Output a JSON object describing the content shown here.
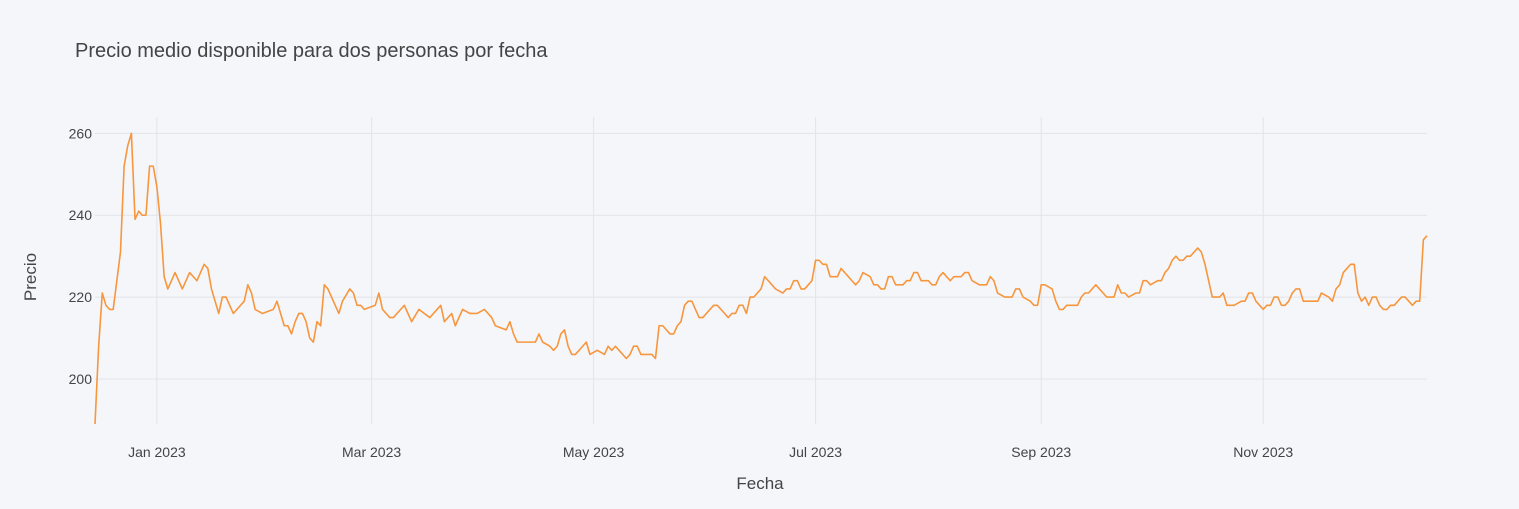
{
  "chart_data": {
    "type": "line",
    "title": "Precio medio disponible para dos personas por fecha",
    "x_label": "Fecha",
    "y_label": "Precio",
    "color": "#f7963c",
    "grid": true,
    "xlim": [
      "2022-12-15",
      "2023-12-16"
    ],
    "xticks": [
      {
        "value": "2023-01-01",
        "label": "Jan 2023"
      },
      {
        "value": "2023-03-01",
        "label": "Mar 2023"
      },
      {
        "value": "2023-05-01",
        "label": "May 2023"
      },
      {
        "value": "2023-07-01",
        "label": "Jul 2023"
      },
      {
        "value": "2023-09-01",
        "label": "Sep 2023"
      },
      {
        "value": "2023-11-01",
        "label": "Nov 2023"
      }
    ],
    "ylim": [
      189,
      264
    ],
    "yticks": [
      200,
      220,
      240,
      260
    ],
    "x": [
      "2022-12-15",
      "2022-12-16",
      "2022-12-17",
      "2022-12-18",
      "2022-12-19",
      "2022-12-20",
      "2022-12-22",
      "2022-12-23",
      "2022-12-24",
      "2022-12-25",
      "2022-12-26",
      "2022-12-27",
      "2022-12-28",
      "2022-12-29",
      "2022-12-30",
      "2022-12-31",
      "2023-01-01",
      "2023-01-02",
      "2023-01-03",
      "2023-01-04",
      "2023-01-06",
      "2023-01-08",
      "2023-01-10",
      "2023-01-12",
      "2023-01-14",
      "2023-01-15",
      "2023-01-16",
      "2023-01-17",
      "2023-01-18",
      "2023-01-19",
      "2023-01-20",
      "2023-01-22",
      "2023-01-25",
      "2023-01-26",
      "2023-01-27",
      "2023-01-28",
      "2023-01-30",
      "2023-02-02",
      "2023-02-03",
      "2023-02-04",
      "2023-02-05",
      "2023-02-06",
      "2023-02-07",
      "2023-02-08",
      "2023-02-09",
      "2023-02-10",
      "2023-02-11",
      "2023-02-12",
      "2023-02-13",
      "2023-02-14",
      "2023-02-15",
      "2023-02-16",
      "2023-02-17",
      "2023-02-19",
      "2023-02-20",
      "2023-02-21",
      "2023-02-23",
      "2023-02-24",
      "2023-02-25",
      "2023-02-26",
      "2023-02-27",
      "2023-03-02",
      "2023-03-03",
      "2023-03-04",
      "2023-03-06",
      "2023-03-07",
      "2023-03-09",
      "2023-03-10",
      "2023-03-12",
      "2023-03-14",
      "2023-03-17",
      "2023-03-20",
      "2023-03-21",
      "2023-03-23",
      "2023-03-24",
      "2023-03-26",
      "2023-03-28",
      "2023-03-30",
      "2023-04-01",
      "2023-04-03",
      "2023-04-04",
      "2023-04-07",
      "2023-04-08",
      "2023-04-09",
      "2023-04-10",
      "2023-04-14",
      "2023-04-15",
      "2023-04-16",
      "2023-04-17",
      "2023-04-19",
      "2023-04-20",
      "2023-04-21",
      "2023-04-22",
      "2023-04-23",
      "2023-04-24",
      "2023-04-25",
      "2023-04-26",
      "2023-04-28",
      "2023-04-29",
      "2023-04-30",
      "2023-05-02",
      "2023-05-04",
      "2023-05-05",
      "2023-05-06",
      "2023-05-07",
      "2023-05-08",
      "2023-05-10",
      "2023-05-11",
      "2023-05-12",
      "2023-05-13",
      "2023-05-14",
      "2023-05-17",
      "2023-05-18",
      "2023-05-19",
      "2023-05-20",
      "2023-05-22",
      "2023-05-23",
      "2023-05-24",
      "2023-05-25",
      "2023-05-26",
      "2023-05-27",
      "2023-05-28",
      "2023-05-29",
      "2023-05-30",
      "2023-05-31",
      "2023-06-02",
      "2023-06-03",
      "2023-06-04",
      "2023-06-05",
      "2023-06-06",
      "2023-06-07",
      "2023-06-08",
      "2023-06-09",
      "2023-06-10",
      "2023-06-11",
      "2023-06-12",
      "2023-06-13",
      "2023-06-14",
      "2023-06-15",
      "2023-06-16",
      "2023-06-17",
      "2023-06-18",
      "2023-06-20",
      "2023-06-22",
      "2023-06-23",
      "2023-06-24",
      "2023-06-25",
      "2023-06-26",
      "2023-06-27",
      "2023-06-28",
      "2023-06-29",
      "2023-06-30",
      "2023-07-01",
      "2023-07-02",
      "2023-07-03",
      "2023-07-04",
      "2023-07-05",
      "2023-07-07",
      "2023-07-08",
      "2023-07-10",
      "2023-07-11",
      "2023-07-12",
      "2023-07-13",
      "2023-07-14",
      "2023-07-16",
      "2023-07-17",
      "2023-07-18",
      "2023-07-19",
      "2023-07-20",
      "2023-07-21",
      "2023-07-22",
      "2023-07-23",
      "2023-07-25",
      "2023-07-26",
      "2023-07-27",
      "2023-07-28",
      "2023-07-29",
      "2023-07-30",
      "2023-08-01",
      "2023-08-02",
      "2023-08-03",
      "2023-08-04",
      "2023-08-05",
      "2023-08-07",
      "2023-08-08",
      "2023-08-10",
      "2023-08-11",
      "2023-08-12",
      "2023-08-13",
      "2023-08-15",
      "2023-08-17",
      "2023-08-18",
      "2023-08-19",
      "2023-08-20",
      "2023-08-22",
      "2023-08-24",
      "2023-08-25",
      "2023-08-26",
      "2023-08-27",
      "2023-08-29",
      "2023-08-30",
      "2023-08-31",
      "2023-09-01",
      "2023-09-02",
      "2023-09-04",
      "2023-09-05",
      "2023-09-06",
      "2023-09-07",
      "2023-09-08",
      "2023-09-10",
      "2023-09-11",
      "2023-09-12",
      "2023-09-13",
      "2023-09-14",
      "2023-09-16",
      "2023-09-17",
      "2023-09-18",
      "2023-09-19",
      "2023-09-21",
      "2023-09-22",
      "2023-09-23",
      "2023-09-24",
      "2023-09-25",
      "2023-09-27",
      "2023-09-28",
      "2023-09-29",
      "2023-09-30",
      "2023-10-01",
      "2023-10-03",
      "2023-10-04",
      "2023-10-05",
      "2023-10-06",
      "2023-10-07",
      "2023-10-08",
      "2023-10-09",
      "2023-10-10",
      "2023-10-11",
      "2023-10-12",
      "2023-10-14",
      "2023-10-15",
      "2023-10-16",
      "2023-10-17",
      "2023-10-18",
      "2023-10-20",
      "2023-10-21",
      "2023-10-22",
      "2023-10-24",
      "2023-10-26",
      "2023-10-27",
      "2023-10-28",
      "2023-10-29",
      "2023-10-30",
      "2023-10-31",
      "2023-11-01",
      "2023-11-02",
      "2023-11-03",
      "2023-11-04",
      "2023-11-05",
      "2023-11-06",
      "2023-11-07",
      "2023-11-08",
      "2023-11-09",
      "2023-11-10",
      "2023-11-11",
      "2023-11-12",
      "2023-11-15",
      "2023-11-16",
      "2023-11-17",
      "2023-11-19",
      "2023-11-20",
      "2023-11-21",
      "2023-11-22",
      "2023-11-23",
      "2023-11-24",
      "2023-11-25",
      "2023-11-26",
      "2023-11-27",
      "2023-11-28",
      "2023-11-29",
      "2023-11-30",
      "2023-12-01",
      "2023-12-02",
      "2023-12-03",
      "2023-12-04",
      "2023-12-05",
      "2023-12-06",
      "2023-12-07",
      "2023-12-08",
      "2023-12-09",
      "2023-12-10",
      "2023-12-11",
      "2023-12-12",
      "2023-12-13",
      "2023-12-14",
      "2023-12-15",
      "2023-12-16"
    ],
    "values": [
      189,
      208,
      221,
      218,
      217,
      217,
      231,
      252,
      257,
      260,
      239,
      241,
      240,
      240,
      252,
      252,
      247,
      238,
      225,
      222,
      226,
      222,
      226,
      224,
      228,
      227,
      222,
      219,
      216,
      220,
      220,
      216,
      219,
      223,
      221,
      217,
      216,
      217,
      219,
      216,
      213,
      213,
      211,
      214,
      216,
      216,
      214,
      210,
      209,
      214,
      213,
      223,
      222,
      218,
      216,
      219,
      222,
      221,
      218,
      218,
      217,
      218,
      221,
      217,
      215,
      215,
      217,
      218,
      214,
      217,
      215,
      218,
      214,
      216,
      213,
      217,
      216,
      216,
      217,
      215,
      213,
      212,
      214,
      211,
      209,
      209,
      209,
      211,
      209,
      208,
      207,
      208,
      211,
      212,
      208,
      206,
      206,
      208,
      209,
      206,
      207,
      206,
      208,
      207,
      208,
      207,
      205,
      206,
      208,
      208,
      206,
      206,
      205,
      213,
      213,
      211,
      211,
      213,
      214,
      218,
      219,
      219,
      217,
      215,
      215,
      217,
      218,
      218,
      217,
      216,
      215,
      216,
      216,
      218,
      218,
      216,
      220,
      220,
      221,
      222,
      225,
      224,
      222,
      221,
      222,
      222,
      224,
      224,
      222,
      222,
      223,
      224,
      229,
      229,
      228,
      228,
      225,
      225,
      227,
      225,
      224,
      223,
      224,
      226,
      225,
      223,
      223,
      222,
      222,
      225,
      225,
      223,
      223,
      224,
      224,
      226,
      226,
      224,
      224,
      223,
      223,
      225,
      226,
      224,
      225,
      225,
      226,
      226,
      224,
      223,
      223,
      225,
      224,
      221,
      220,
      220,
      222,
      222,
      220,
      219,
      218,
      218,
      223,
      223,
      222,
      219,
      217,
      217,
      218,
      218,
      218,
      220,
      221,
      221,
      223,
      222,
      221,
      220,
      220,
      223,
      221,
      221,
      220,
      221,
      221,
      224,
      224,
      223,
      224,
      224,
      226,
      227,
      229,
      230,
      229,
      229,
      230,
      230,
      232,
      231,
      228,
      224,
      220,
      220,
      221,
      218,
      218,
      219,
      219,
      221,
      221,
      219,
      218,
      217,
      218,
      218,
      220,
      220,
      218,
      218,
      219,
      221,
      222,
      222,
      219,
      219,
      219,
      221,
      220,
      219,
      222,
      223,
      226,
      227,
      228,
      228,
      221,
      219,
      220,
      218,
      220,
      220,
      218,
      217,
      217,
      218,
      218,
      219,
      220,
      220,
      219,
      218,
      219,
      219,
      234,
      235
    ]
  }
}
